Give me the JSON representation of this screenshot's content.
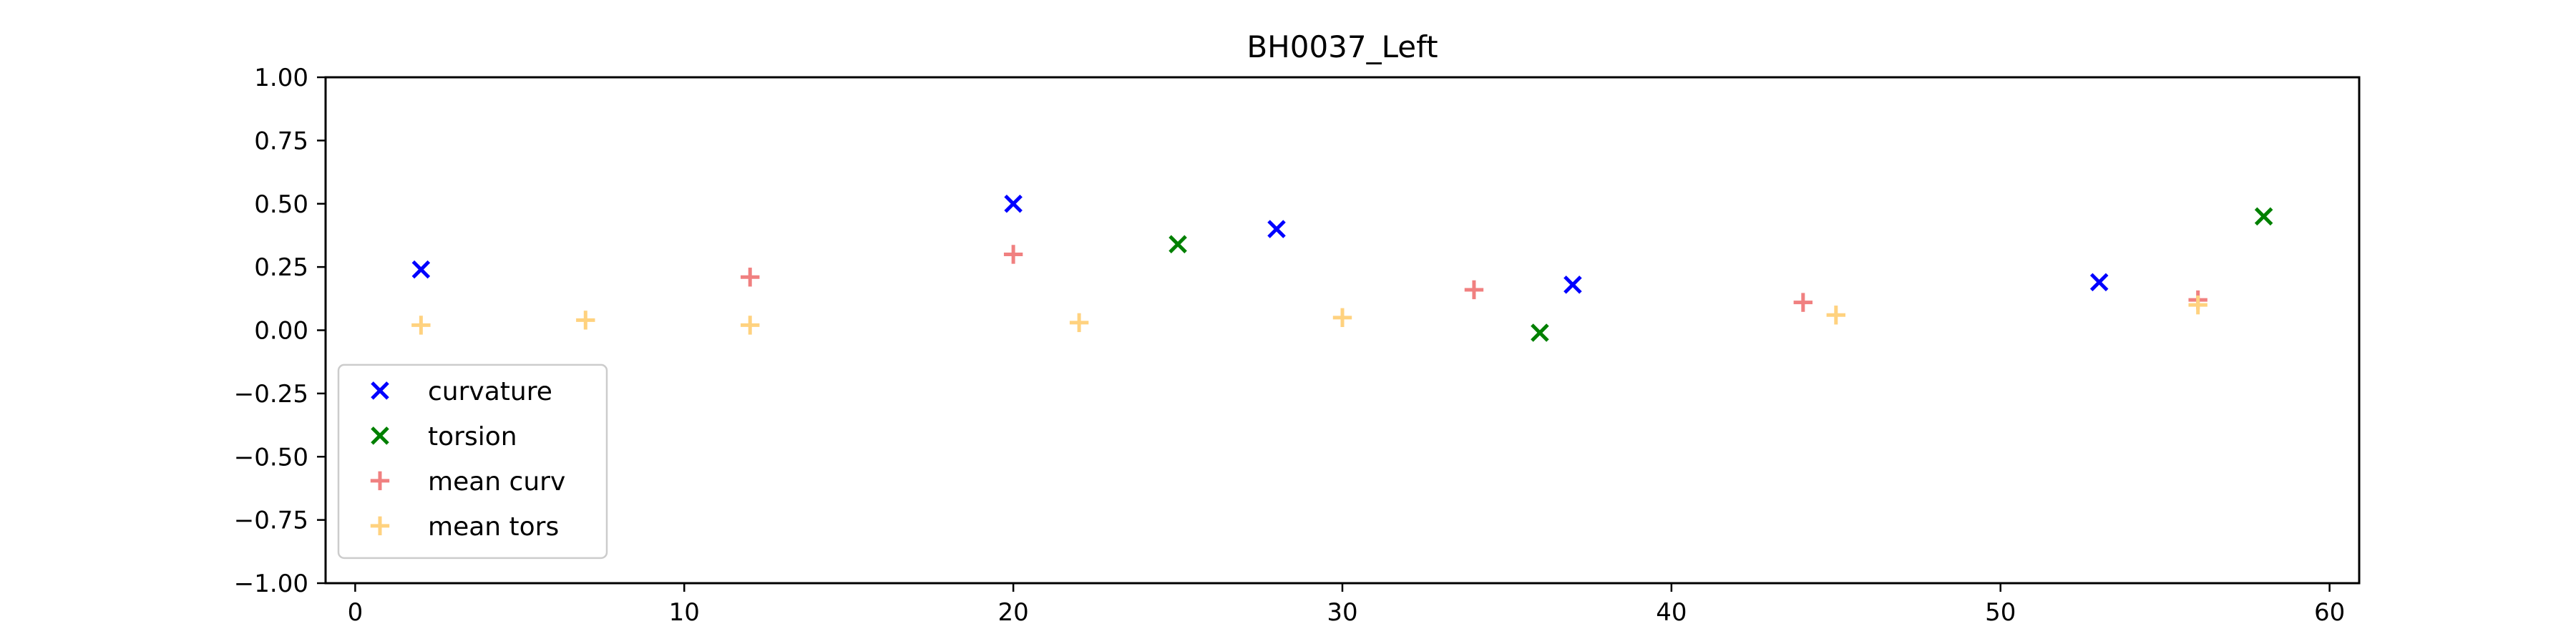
{
  "chart_data": {
    "type": "scatter",
    "title": "BH0037_Left",
    "xlabel": "",
    "ylabel": "",
    "xlim": [
      -0.9,
      60.9
    ],
    "ylim": [
      -1.0,
      1.0
    ],
    "xticks": [
      0,
      10,
      20,
      30,
      40,
      50,
      60
    ],
    "yticks": [
      1.0,
      0.75,
      0.5,
      0.25,
      0.0,
      -0.25,
      -0.5,
      -0.75,
      -1.0
    ],
    "xtick_labels": [
      "0",
      "10",
      "20",
      "30",
      "40",
      "50",
      "60"
    ],
    "ytick_labels": [
      "1.00",
      "0.75",
      "0.50",
      "0.25",
      "0.00",
      "−0.25",
      "−0.50",
      "−0.75",
      "−1.00"
    ],
    "grid": false,
    "legend_position": "lower-left",
    "series": [
      {
        "name": "curvature",
        "marker": "x",
        "color": "#0000ff",
        "points": [
          [
            2,
            0.24
          ],
          [
            20,
            0.5
          ],
          [
            28,
            0.4
          ],
          [
            37,
            0.18
          ],
          [
            53,
            0.19
          ]
        ]
      },
      {
        "name": "torsion",
        "marker": "x",
        "color": "#008000",
        "points": [
          [
            25,
            0.34
          ],
          [
            36,
            -0.01
          ],
          [
            58,
            0.45
          ]
        ]
      },
      {
        "name": "mean curv",
        "marker": "+",
        "color": "#f08080",
        "points": [
          [
            12,
            0.21
          ],
          [
            20,
            0.3
          ],
          [
            34,
            0.16
          ],
          [
            44,
            0.11
          ],
          [
            56,
            0.12
          ]
        ]
      },
      {
        "name": "mean tors",
        "marker": "+",
        "color": "#ffd27f",
        "points": [
          [
            2,
            0.02
          ],
          [
            7,
            0.04
          ],
          [
            12,
            0.02
          ],
          [
            22,
            0.03
          ],
          [
            30,
            0.05
          ],
          [
            45,
            0.06
          ],
          [
            56,
            0.1
          ]
        ]
      }
    ]
  }
}
